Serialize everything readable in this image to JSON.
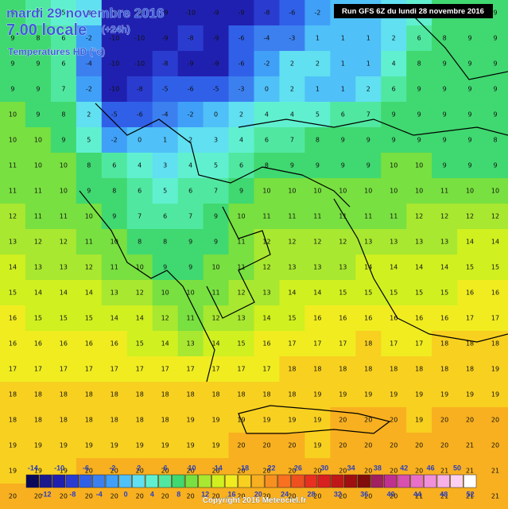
{
  "header": {
    "title": "mardi 29 novembre 2016",
    "time": "7.00 locale",
    "lead": "(+24h)",
    "product": "Temperatures HD (°c)",
    "run": "Run GFS 6Z du lundi 28 novembre 2016"
  },
  "map": {
    "grid": [
      [
        8,
        7,
        5,
        3,
        -9,
        -10,
        -9,
        -10,
        -9,
        -9,
        -8,
        -6,
        -2,
        0,
        1,
        2,
        5,
        8,
        9,
        9
      ],
      [
        9,
        8,
        6,
        -2,
        -10,
        -10,
        -9,
        -8,
        -9,
        -6,
        -4,
        -3,
        1,
        1,
        1,
        2,
        6,
        8,
        9,
        9
      ],
      [
        9,
        9,
        6,
        -4,
        -10,
        -10,
        -8,
        -9,
        -9,
        -6,
        -2,
        2,
        2,
        1,
        1,
        4,
        8,
        9,
        9,
        9
      ],
      [
        9,
        9,
        7,
        -2,
        -10,
        -8,
        -5,
        -6,
        -5,
        -3,
        0,
        2,
        1,
        1,
        2,
        6,
        9,
        9,
        9,
        9
      ],
      [
        10,
        9,
        8,
        2,
        -5,
        -6,
        -4,
        -2,
        0,
        2,
        4,
        4,
        5,
        6,
        7,
        9,
        9,
        9,
        9,
        9
      ],
      [
        10,
        10,
        9,
        5,
        -2,
        0,
        1,
        2,
        3,
        4,
        6,
        7,
        8,
        9,
        9,
        9,
        9,
        9,
        9,
        8
      ],
      [
        11,
        10,
        10,
        8,
        6,
        4,
        3,
        4,
        5,
        6,
        8,
        9,
        9,
        9,
        9,
        10,
        10,
        9,
        9,
        9
      ],
      [
        11,
        11,
        10,
        9,
        8,
        6,
        5,
        6,
        7,
        9,
        10,
        10,
        10,
        10,
        10,
        10,
        10,
        11,
        10,
        10
      ],
      [
        12,
        11,
        11,
        10,
        9,
        7,
        6,
        7,
        9,
        10,
        11,
        11,
        11,
        11,
        11,
        11,
        12,
        12,
        12,
        12
      ],
      [
        13,
        12,
        12,
        11,
        10,
        8,
        8,
        9,
        9,
        11,
        12,
        12,
        12,
        12,
        13,
        13,
        13,
        13,
        14,
        14
      ],
      [
        14,
        13,
        13,
        12,
        11,
        10,
        9,
        9,
        10,
        11,
        12,
        13,
        13,
        13,
        14,
        14,
        14,
        14,
        15,
        15
      ],
      [
        15,
        14,
        14,
        14,
        13,
        12,
        10,
        10,
        11,
        12,
        13,
        14,
        14,
        15,
        15,
        15,
        15,
        15,
        16,
        16
      ],
      [
        16,
        15,
        15,
        15,
        14,
        14,
        12,
        11,
        12,
        13,
        14,
        15,
        16,
        16,
        16,
        16,
        16,
        16,
        17,
        17
      ],
      [
        16,
        16,
        16,
        16,
        16,
        15,
        14,
        13,
        14,
        15,
        16,
        17,
        17,
        17,
        18,
        17,
        17,
        18,
        18,
        18
      ],
      [
        17,
        17,
        17,
        17,
        17,
        17,
        17,
        17,
        17,
        17,
        17,
        18,
        18,
        18,
        18,
        18,
        18,
        18,
        18,
        19
      ],
      [
        18,
        18,
        18,
        18,
        18,
        18,
        18,
        18,
        18,
        18,
        18,
        18,
        19,
        19,
        19,
        19,
        19,
        19,
        19,
        19
      ],
      [
        18,
        18,
        18,
        18,
        18,
        18,
        18,
        19,
        19,
        19,
        19,
        19,
        19,
        20,
        20,
        20,
        19,
        20,
        20,
        20
      ],
      [
        19,
        19,
        19,
        19,
        19,
        19,
        19,
        19,
        19,
        20,
        20,
        20,
        19,
        20,
        20,
        20,
        20,
        20,
        21,
        20
      ],
      [
        19,
        19,
        19,
        20,
        20,
        20,
        20,
        20,
        20,
        20,
        20,
        20,
        20,
        20,
        20,
        20,
        20,
        21,
        21,
        21
      ],
      [
        20,
        20,
        20,
        20,
        20,
        20,
        20,
        20,
        20,
        20,
        20,
        20,
        20,
        20,
        20,
        20,
        21,
        21,
        21,
        21
      ]
    ]
  },
  "legend": {
    "values": [
      -14,
      -12,
      -10,
      -8,
      -6,
      -4,
      -2,
      0,
      2,
      4,
      6,
      8,
      10,
      12,
      14,
      16,
      18,
      20,
      22,
      24,
      26,
      28,
      30,
      32,
      34,
      36,
      38,
      40,
      42,
      44,
      46,
      48,
      50,
      52
    ],
    "colors": [
      "#0a0a5a",
      "#1a1a8c",
      "#2020b0",
      "#2a3cd0",
      "#3060e8",
      "#3c80f0",
      "#40a0f8",
      "#50c0f8",
      "#60e0f0",
      "#60f0d0",
      "#50e8a0",
      "#40d870",
      "#78e040",
      "#a8e830",
      "#d0f020",
      "#f0ec20",
      "#f8d020",
      "#f8b020",
      "#f89020",
      "#f87020",
      "#f05020",
      "#e83020",
      "#d82020",
      "#c01818",
      "#a01010",
      "#800c0c",
      "#a02060",
      "#c03090",
      "#d850b0",
      "#e870c8",
      "#f090d8",
      "#f8b0e8",
      "#fcd0f0",
      "#ffffff"
    ]
  },
  "footer": {
    "copyright": "Copyright 2016 Meteociel.fr"
  }
}
